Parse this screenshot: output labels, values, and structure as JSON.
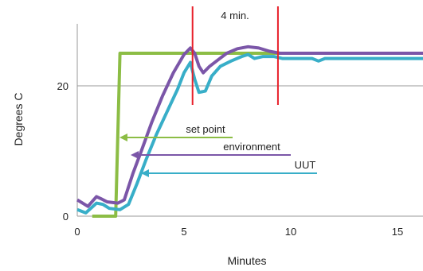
{
  "chart_data": {
    "type": "line",
    "title": "",
    "xlabel": "Minutes",
    "ylabel": "Degrees C",
    "xlim": [
      0,
      16.2
    ],
    "ylim": [
      0,
      30
    ],
    "x_ticks": [
      0,
      5,
      10,
      15
    ],
    "y_ticks": [
      0,
      20
    ],
    "grid": "horizontal line at 20",
    "series": [
      {
        "name": "set point",
        "color": "#8cbd45",
        "x": [
          0.7,
          1.8,
          2.0,
          2.1,
          16.2
        ],
        "y": [
          0,
          0,
          25,
          25,
          25
        ]
      },
      {
        "name": "environment",
        "color": "#7b56a8",
        "x": [
          0,
          0.5,
          0.9,
          1.1,
          1.4,
          1.9,
          2.2,
          2.6,
          3.0,
          3.5,
          4.0,
          4.5,
          5.0,
          5.3,
          5.5,
          5.7,
          5.9,
          6.2,
          6.6,
          7.0,
          7.5,
          8.0,
          8.5,
          9.0,
          9.5,
          10.0,
          11.0,
          12.0,
          13.0,
          14.0,
          15.0,
          16.2
        ],
        "y": [
          2.5,
          1.5,
          3.0,
          2.7,
          2.2,
          2.0,
          2.5,
          6.5,
          10.0,
          14.5,
          18.5,
          22.0,
          24.8,
          25.8,
          25.0,
          23.0,
          22.0,
          23.0,
          24.0,
          25.0,
          25.7,
          26.0,
          25.8,
          25.3,
          25.0,
          25.0,
          25.0,
          25.0,
          25.0,
          25.0,
          25.0,
          25.0
        ]
      },
      {
        "name": "UUT",
        "color": "#38aec8",
        "x": [
          0,
          0.4,
          0.9,
          1.2,
          1.5,
          2.0,
          2.4,
          2.8,
          3.2,
          3.7,
          4.2,
          4.7,
          5.0,
          5.3,
          5.5,
          5.7,
          6.0,
          6.3,
          6.7,
          7.2,
          7.7,
          8.0,
          8.3,
          8.7,
          9.2,
          9.6,
          10.0,
          11.0,
          11.3,
          11.6,
          12.0,
          13.0,
          14.0,
          15.0,
          16.2
        ],
        "y": [
          1.0,
          0.5,
          2.0,
          1.8,
          1.2,
          1.0,
          1.8,
          5.0,
          8.5,
          12.5,
          16.0,
          19.5,
          22.0,
          23.6,
          21.0,
          19.0,
          19.2,
          21.5,
          23.0,
          23.8,
          24.5,
          24.8,
          24.2,
          24.5,
          24.5,
          24.2,
          24.2,
          24.2,
          23.8,
          24.2,
          24.2,
          24.2,
          24.2,
          24.2,
          24.2
        ]
      }
    ],
    "markers": [
      {
        "x": 5.4,
        "color": "#e8202a"
      },
      {
        "x": 9.4,
        "color": "#e8202a"
      }
    ],
    "annotations": {
      "interval": "4 min.",
      "set_point": "set point",
      "environment": "environment",
      "uut": "UUT"
    },
    "legend": "inline arrows pointing to each line"
  }
}
